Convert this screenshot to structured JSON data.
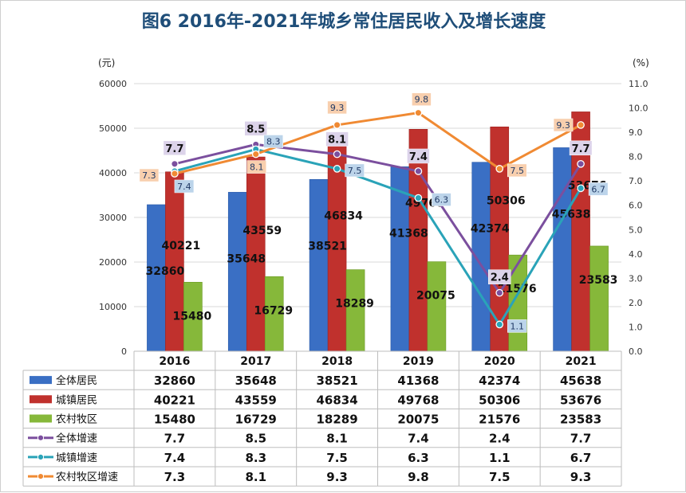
{
  "title": "图6  2016年-2021年城乡常住居民收入及增长速度",
  "chart_data": {
    "type": "bar",
    "title": "图6  2016年-2021年城乡常住居民收入及增长速度",
    "left_axis_unit": "(元)",
    "right_axis_unit": "(%)",
    "categories": [
      "2016",
      "2017",
      "2018",
      "2019",
      "2020",
      "2021"
    ],
    "ylim_left": [
      0,
      60000
    ],
    "ylim_right": [
      0.0,
      11.0
    ],
    "left_ticks": [
      "0",
      "10000",
      "20000",
      "30000",
      "40000",
      "50000",
      "60000"
    ],
    "right_ticks": [
      "0.0",
      "1.0",
      "2.0",
      "3.0",
      "4.0",
      "5.0",
      "6.0",
      "7.0",
      "8.0",
      "9.0",
      "10.0",
      "11.0"
    ],
    "bar_series": [
      {
        "name": "全体居民",
        "color": "#3a6fc4",
        "values": [
          32860,
          35648,
          38521,
          41368,
          42374,
          45638
        ]
      },
      {
        "name": "城镇居民",
        "color": "#c0312d",
        "values": [
          40221,
          43559,
          46834,
          49768,
          50306,
          53676
        ]
      },
      {
        "name": "农村牧区",
        "color": "#86b83a",
        "values": [
          15480,
          16729,
          18289,
          20075,
          21576,
          23583
        ]
      }
    ],
    "line_series": [
      {
        "name": "全体增速",
        "color": "#7b4f9e",
        "values": [
          7.7,
          8.5,
          8.1,
          7.4,
          2.4,
          7.7
        ]
      },
      {
        "name": "城镇增速",
        "color": "#2aa3b8",
        "values": [
          7.4,
          8.3,
          7.5,
          6.3,
          1.1,
          6.7
        ]
      },
      {
        "name": "农村牧区增速",
        "color": "#f08a33",
        "values": [
          7.3,
          8.1,
          9.3,
          9.8,
          7.5,
          9.3
        ]
      }
    ],
    "grid": true,
    "legend": "data table below chart"
  }
}
